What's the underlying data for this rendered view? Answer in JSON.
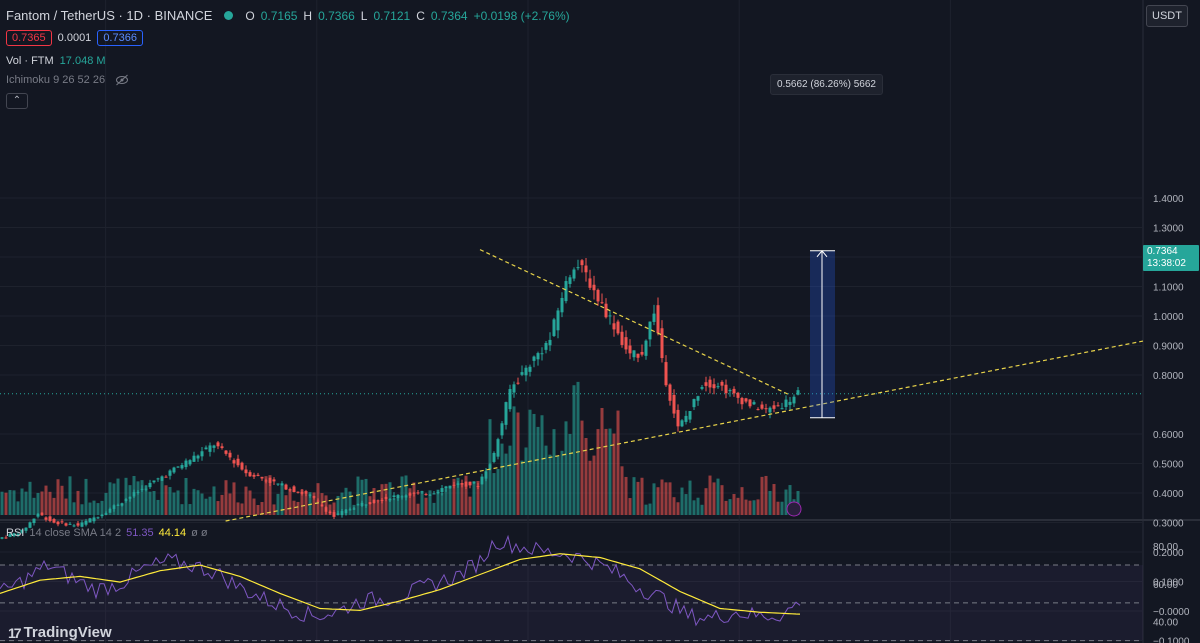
{
  "header": {
    "symbol": "Fantom / TetherUS · 1D · BINANCE",
    "ohlc": {
      "o_label": "O",
      "o": "0.7165",
      "h_label": "H",
      "h": "0.7366",
      "l_label": "L",
      "l": "0.7121",
      "c_label": "C",
      "c": "0.7364",
      "change": "+0.0198 (+2.76%)"
    },
    "bid": "0.7365",
    "spread": "0.0001",
    "ask": "0.7366",
    "volume_label": "Vol · FTM",
    "volume_value": "17.048 M",
    "ichimoku_label": "Ichimoku 9 26 52 26",
    "collapse_icon": "chevron-up-icon"
  },
  "currency_button": "USDT",
  "last_price": {
    "value": "0.7364",
    "countdown": "13:38:02",
    "color": "#26a69a"
  },
  "measure": {
    "label": "0.5662 (86.26%) 5662",
    "from": 0.655,
    "to": 1.221,
    "color": "#2962ff"
  },
  "rsi": {
    "name": "RSI",
    "params": "14 close SMA 14 2",
    "value": "51.35",
    "ma": "44.14",
    "extra": "ø ø",
    "axis_ticks": [
      "80.00",
      "60.00",
      "40.00"
    ],
    "upper_band": 70,
    "mid_band": 50,
    "lower_band": 30
  },
  "branding": "TradingView",
  "chart_data": {
    "type": "candlestick",
    "y_axis_ticks": [
      "1.4000",
      "1.3000",
      "1.2000",
      "1.1000",
      "1.0000",
      "0.9000",
      "0.8000",
      "0.6000",
      "0.5000",
      "0.4000",
      "0.3000",
      "0.2000",
      "0.1000",
      "−0.0000",
      "−0.1000"
    ],
    "trendlines": [
      {
        "name": "descending resistance",
        "from": [
          0.6,
          1.225
        ],
        "to": [
          0.985,
          0.735
        ],
        "color": "#e8d34a"
      },
      {
        "name": "ascending support",
        "from": [
          0.282,
          0.305
        ],
        "to": [
          1.0,
          0.915
        ],
        "color": "#e8d34a"
      }
    ],
    "colors": {
      "up": "#26a69a",
      "down": "#ef5350",
      "rsi": "#7e57c2",
      "rsi_ma": "#ffeb3b"
    },
    "price_path": [
      [
        0.0,
        0.245
      ],
      [
        0.03,
        0.27
      ],
      [
        0.05,
        0.33
      ],
      [
        0.07,
        0.3
      ],
      [
        0.1,
        0.29
      ],
      [
        0.13,
        0.33
      ],
      [
        0.16,
        0.38
      ],
      [
        0.19,
        0.43
      ],
      [
        0.22,
        0.48
      ],
      [
        0.25,
        0.53
      ],
      [
        0.27,
        0.565
      ],
      [
        0.29,
        0.52
      ],
      [
        0.31,
        0.47
      ],
      [
        0.33,
        0.45
      ],
      [
        0.36,
        0.42
      ],
      [
        0.39,
        0.39
      ],
      [
        0.42,
        0.32
      ],
      [
        0.45,
        0.36
      ],
      [
        0.48,
        0.38
      ],
      [
        0.51,
        0.395
      ],
      [
        0.54,
        0.4
      ],
      [
        0.57,
        0.43
      ],
      [
        0.6,
        0.43
      ],
      [
        0.62,
        0.53
      ],
      [
        0.64,
        0.75
      ],
      [
        0.665,
        0.84
      ],
      [
        0.69,
        0.92
      ],
      [
        0.705,
        1.07
      ],
      [
        0.72,
        1.18
      ],
      [
        0.735,
        1.14
      ],
      [
        0.75,
        1.06
      ],
      [
        0.77,
        0.97
      ],
      [
        0.79,
        0.86
      ],
      [
        0.805,
        0.88
      ],
      [
        0.82,
        1.02
      ],
      [
        0.835,
        0.78
      ],
      [
        0.85,
        0.62
      ],
      [
        0.865,
        0.68
      ],
      [
        0.88,
        0.77
      ],
      [
        0.9,
        0.77
      ],
      [
        0.92,
        0.73
      ],
      [
        0.94,
        0.7
      ],
      [
        0.96,
        0.68
      ],
      [
        0.98,
        0.7
      ],
      [
        1.0,
        0.736
      ]
    ],
    "rsi_path": [
      [
        0.0,
        55
      ],
      [
        0.03,
        62
      ],
      [
        0.06,
        70
      ],
      [
        0.09,
        63
      ],
      [
        0.12,
        57
      ],
      [
        0.15,
        60
      ],
      [
        0.18,
        68
      ],
      [
        0.21,
        72
      ],
      [
        0.24,
        70
      ],
      [
        0.27,
        66
      ],
      [
        0.3,
        58
      ],
      [
        0.33,
        52
      ],
      [
        0.36,
        47
      ],
      [
        0.39,
        43
      ],
      [
        0.42,
        45
      ],
      [
        0.45,
        51
      ],
      [
        0.48,
        52
      ],
      [
        0.51,
        55
      ],
      [
        0.54,
        60
      ],
      [
        0.57,
        64
      ],
      [
        0.6,
        72
      ],
      [
        0.62,
        83
      ],
      [
        0.65,
        80
      ],
      [
        0.68,
        77
      ],
      [
        0.71,
        76
      ],
      [
        0.74,
        72
      ],
      [
        0.77,
        66
      ],
      [
        0.8,
        58
      ],
      [
        0.83,
        52
      ],
      [
        0.86,
        43
      ],
      [
        0.89,
        42
      ],
      [
        0.92,
        45
      ],
      [
        0.95,
        43
      ],
      [
        0.98,
        44
      ],
      [
        1.0,
        51
      ]
    ],
    "rsi_ma_path": [
      [
        0.0,
        55
      ],
      [
        0.05,
        62
      ],
      [
        0.1,
        64
      ],
      [
        0.15,
        61
      ],
      [
        0.2,
        67
      ],
      [
        0.25,
        70
      ],
      [
        0.3,
        64
      ],
      [
        0.35,
        55
      ],
      [
        0.4,
        47
      ],
      [
        0.45,
        46
      ],
      [
        0.5,
        51
      ],
      [
        0.55,
        57
      ],
      [
        0.6,
        65
      ],
      [
        0.65,
        73
      ],
      [
        0.7,
        76
      ],
      [
        0.75,
        74
      ],
      [
        0.8,
        68
      ],
      [
        0.85,
        56
      ],
      [
        0.9,
        47
      ],
      [
        0.95,
        45
      ],
      [
        1.0,
        44
      ]
    ]
  }
}
